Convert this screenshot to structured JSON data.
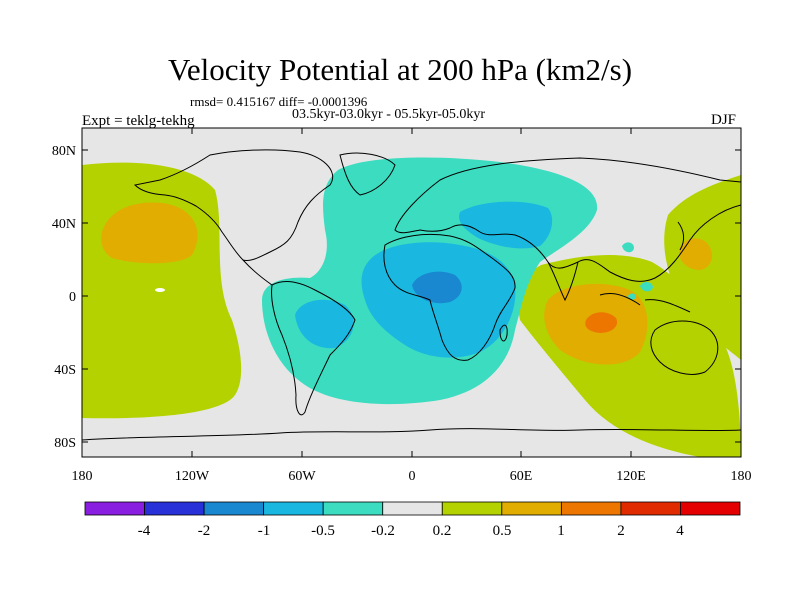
{
  "title": "Velocity Potential at 200 hPa (km2/s)",
  "rmsd_line": "rmsd= 0.415167 diff= -0.0001396",
  "experiment": "Expt = teklg-tekhg",
  "period": "03.5kyr-03.0kyr - 05.5kyr-05.0kyr",
  "season": "DJF",
  "map": {
    "projection": "cylindrical equidistant",
    "lon_range": [
      -180,
      180
    ],
    "lat_range": [
      -90,
      90
    ],
    "background_color": "#e6e6e6",
    "fields": [
      {
        "name": "positive-pacific",
        "level": "0.2 to 0.5",
        "color": "#b4d200"
      },
      {
        "name": "positive-pacific-core",
        "level": "0.5 to 1",
        "color": "#e0ad00"
      },
      {
        "name": "negative-atlantic-africa",
        "level": "-0.5 to -0.2",
        "color": "#3cdcc0"
      },
      {
        "name": "negative-africa-core",
        "level": "-1 to -0.5",
        "color": "#1ab8e0"
      },
      {
        "name": "negative-africa-min",
        "level": "-2 to -1",
        "color": "#1a88d0"
      },
      {
        "name": "positive-maritime-continent",
        "level": "1 to 2",
        "color": "#ec7600"
      }
    ]
  },
  "x_ticks": [
    "180",
    "120W",
    "60W",
    "0",
    "60E",
    "120E",
    "180"
  ],
  "y_ticks": [
    "80N",
    "40N",
    "0",
    "40S",
    "80S"
  ],
  "colorbar": {
    "labels": [
      "-4",
      "-2",
      "-1",
      "-0.5",
      "-0.2",
      "0.2",
      "0.5",
      "1",
      "2",
      "4"
    ],
    "colors": [
      "#8a1ee0",
      "#2830d8",
      "#1a88d0",
      "#1ab8e0",
      "#3cdcc0",
      "#e6e6e6",
      "#b4d200",
      "#e0ad00",
      "#ec7600",
      "#e02a00",
      "#e40000"
    ]
  }
}
